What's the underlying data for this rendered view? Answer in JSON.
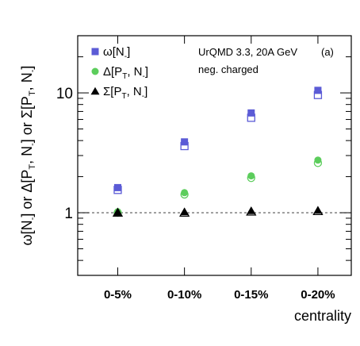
{
  "chart_data": {
    "type": "scatter",
    "panel_label": "(a)",
    "annotation_lines": [
      "UrQMD 3.3, 20A GeV",
      "neg. charged"
    ],
    "xlabel": "centrality",
    "ylabel_parts": [
      "ω[N",
      "-",
      "]  or  Δ[P",
      "T",
      ", N",
      "-",
      "]  or  Σ[P",
      "T",
      ", N",
      "-",
      "]"
    ],
    "yscale": "log",
    "ylim": [
      0.3,
      30
    ],
    "yticks": [
      {
        "value": 1,
        "label": "1"
      },
      {
        "value": 10,
        "label": "10"
      }
    ],
    "reference_line": {
      "y": 1,
      "style": "dashed"
    },
    "grid": false,
    "legend_position": "top-left",
    "categories": [
      "0-5%",
      "0-10%",
      "0-15%",
      "0-20%"
    ],
    "series": [
      {
        "legend": {
          "base": "ω[N",
          "sub": "-",
          "end": "]"
        },
        "marker": "square",
        "color": "#5b5bd6",
        "values": [
          1.62,
          3.9,
          6.8,
          10.5
        ],
        "open_values": [
          1.55,
          3.6,
          6.2,
          9.6
        ]
      },
      {
        "legend": {
          "base": "Δ[P",
          "sub": "T",
          "mid": ", N",
          "sub2": "-",
          "end": "]"
        },
        "marker": "circle",
        "color": "#5ccd5c",
        "values": [
          1.02,
          1.47,
          2.03,
          2.75
        ],
        "open_values": [
          1.0,
          1.42,
          1.95,
          2.6
        ]
      },
      {
        "legend": {
          "base": "Σ[P",
          "sub": "T",
          "mid": ", N",
          "sub2": "-",
          "end": "]"
        },
        "marker": "triangle",
        "color": "#000000",
        "values": [
          1.01,
          1.02,
          1.04,
          1.05
        ],
        "open_values": [
          1.0,
          1.0,
          1.02,
          1.03
        ]
      }
    ]
  }
}
